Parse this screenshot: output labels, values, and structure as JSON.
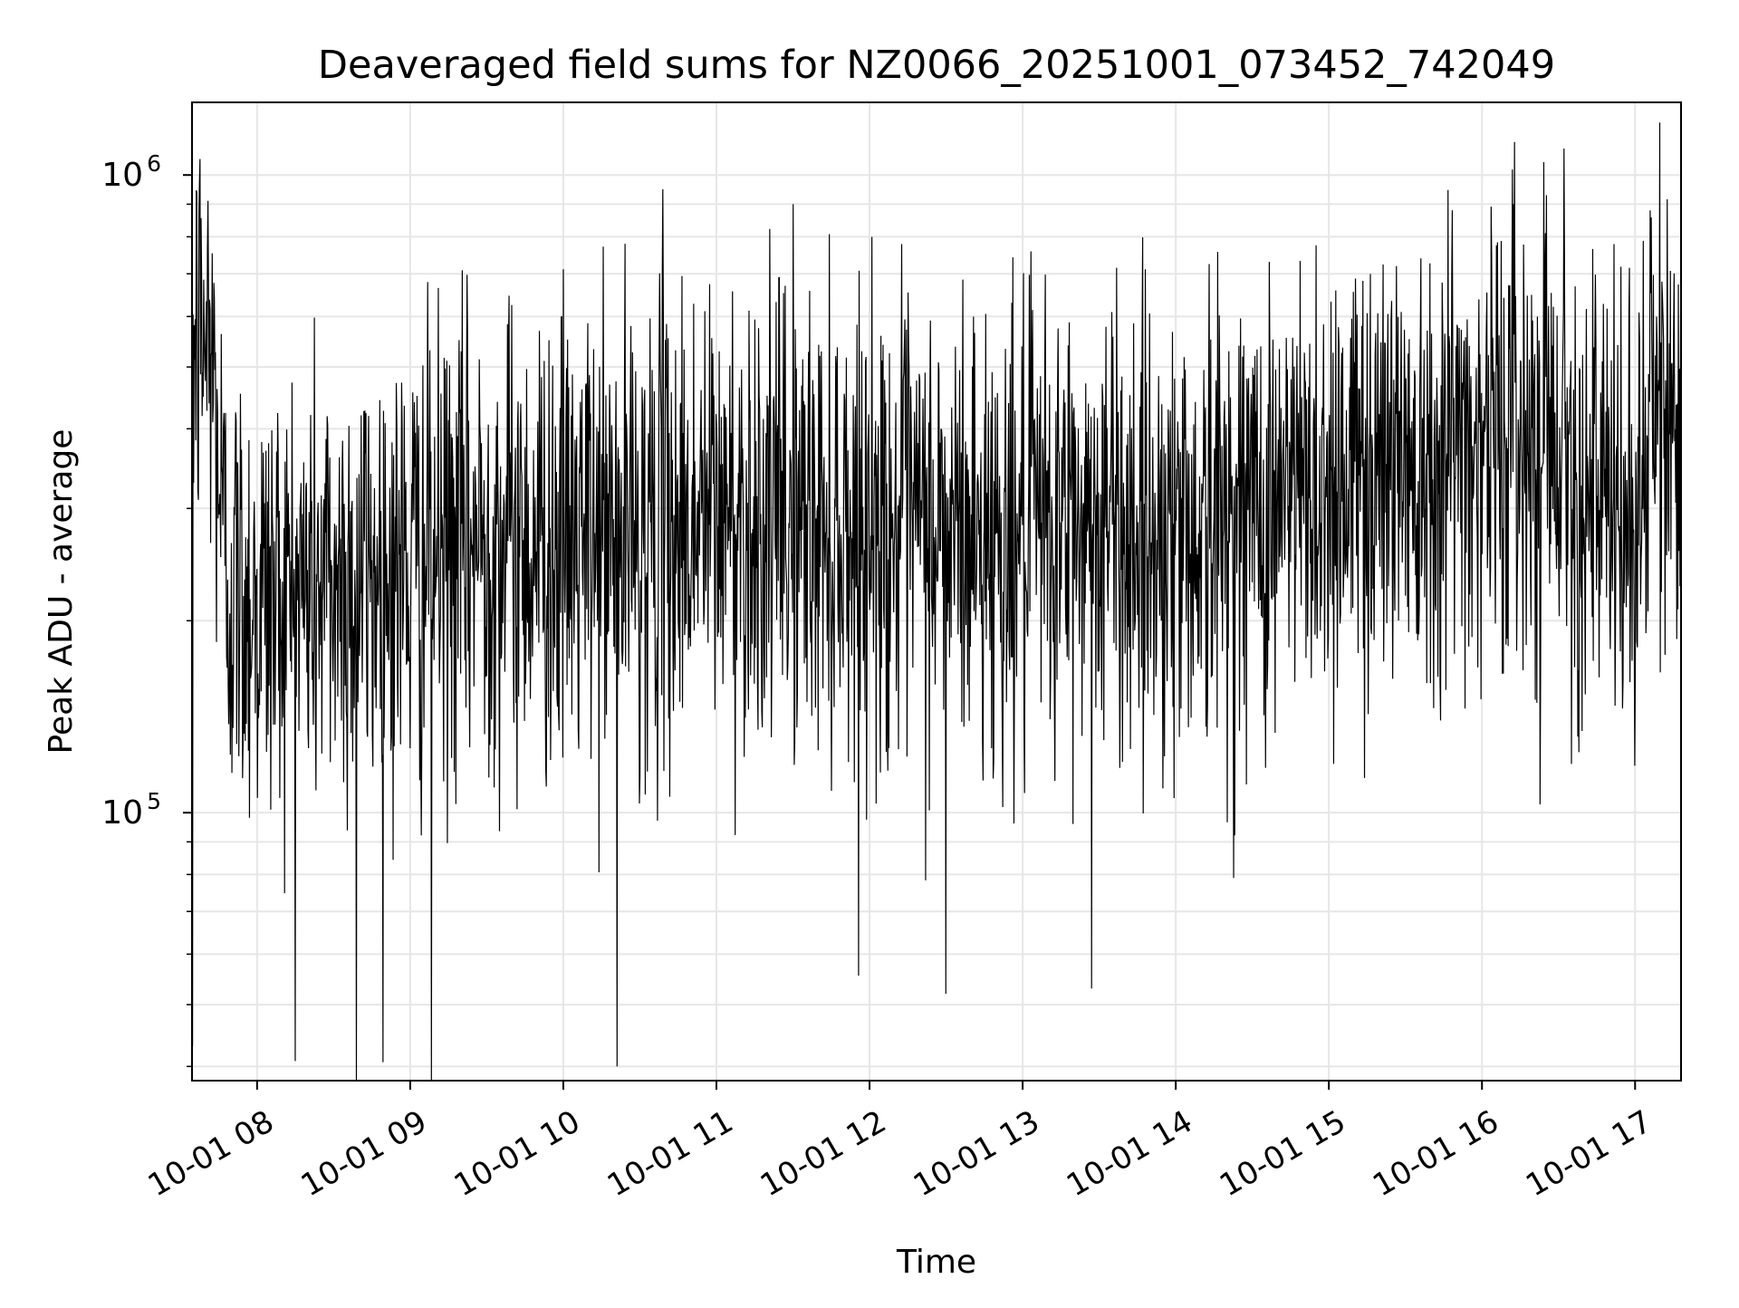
{
  "chart_data": {
    "type": "line",
    "title": "Deaveraged field sums for NZ0066_20251001_073452_742049",
    "xlabel": "Time",
    "ylabel": "Peak ADU - average",
    "yscale": "log",
    "ylim": [
      38000,
      1300000
    ],
    "xlim_hours": [
      7.575,
      17.3
    ],
    "grid": true,
    "line_color": "#000000",
    "grid_color": "#e6e6e6",
    "x_ticks": [
      {
        "label": "10-01 08",
        "hour": 8
      },
      {
        "label": "10-01 09",
        "hour": 9
      },
      {
        "label": "10-01 10",
        "hour": 10
      },
      {
        "label": "10-01 11",
        "hour": 11
      },
      {
        "label": "10-01 12",
        "hour": 12
      },
      {
        "label": "10-01 13",
        "hour": 13
      },
      {
        "label": "10-01 14",
        "hour": 14
      },
      {
        "label": "10-01 15",
        "hour": 15
      },
      {
        "label": "10-01 16",
        "hour": 16
      },
      {
        "label": "10-01 17",
        "hour": 17
      }
    ],
    "y_ticks": [
      {
        "base": "10",
        "exp": "5",
        "value": 100000
      },
      {
        "base": "10",
        "exp": "6",
        "value": 1000000
      }
    ],
    "y_minor_ticks": [
      40000,
      50000,
      60000,
      70000,
      80000,
      90000,
      200000,
      300000,
      400000,
      500000,
      600000,
      700000,
      800000,
      900000
    ],
    "series": [
      {
        "name": "deaveraged field sum",
        "sample_count": 2800,
        "trend": {
          "hours": [
            7.575,
            7.62,
            7.7,
            7.8,
            8.0,
            8.5,
            9.0,
            9.5,
            10.0,
            10.5,
            11.0,
            11.5,
            12.0,
            12.5,
            13.0,
            13.5,
            14.0,
            14.5,
            15.0,
            15.5,
            16.0,
            16.5,
            16.8,
            17.0,
            17.1,
            17.3
          ],
          "values": [
            520000,
            560000,
            540000,
            230000,
            215000,
            230000,
            240000,
            270000,
            265000,
            275000,
            295000,
            285000,
            280000,
            275000,
            270000,
            285000,
            275000,
            300000,
            330000,
            370000,
            390000,
            400000,
            290000,
            270000,
            420000,
            430000
          ]
        },
        "peaks": [
          {
            "hour": 7.62,
            "value": 870000
          },
          {
            "hour": 10.65,
            "value": 950000
          },
          {
            "hour": 11.5,
            "value": 900000
          },
          {
            "hour": 16.2,
            "value": 1020000
          },
          {
            "hour": 16.42,
            "value": 930000
          },
          {
            "hour": 17.1,
            "value": 880000
          }
        ],
        "troughs": [
          {
            "hour": 7.58,
            "value": 43000
          },
          {
            "hour": 8.65,
            "value": 37000
          },
          {
            "hour": 9.14,
            "value": 33000
          },
          {
            "hour": 10.35,
            "value": 40000
          },
          {
            "hour": 12.5,
            "value": 52000
          },
          {
            "hour": 13.45,
            "value": 53000
          }
        ]
      }
    ]
  }
}
